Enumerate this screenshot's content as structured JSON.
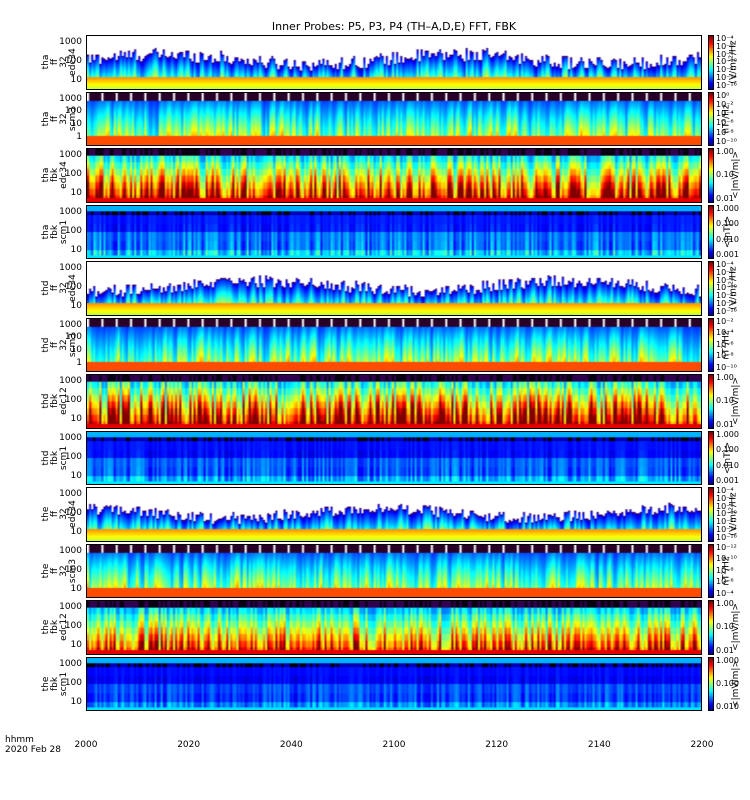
{
  "title": "Inner Probes: P5, P3, P4 (TH–A,D,E) FFT, FBK",
  "x_axis": {
    "label_line1": "hhmm",
    "label_line2": "2020 Feb 28",
    "ticks": [
      "2000",
      "2020",
      "2040",
      "2100",
      "2120",
      "2140",
      "2200"
    ]
  },
  "colors": {
    "palette": "rainbow-jet",
    "saturated_low": "#3a003a",
    "background": "#ffffff"
  },
  "chart_data": {
    "type": "heatmap",
    "title": "Inner Probes: P5, P3, P4 (TH–A,D,E) FFT, FBK",
    "x_start": "2000",
    "x_end": "2200",
    "x_ticks": [
      "2000",
      "2020",
      "2040",
      "2100",
      "2120",
      "2140",
      "2200"
    ],
    "panels": [
      {
        "probe": "tha",
        "label": [
          "tha",
          "ff",
          "32",
          "edc34"
        ],
        "yticks": [
          "1000",
          "100",
          "10"
        ],
        "y_scale": "log",
        "cbar_ticks": [
          "10⁻⁴",
          "10⁻⁶",
          "10⁻⁸",
          "10⁻¹⁰",
          "10⁻¹²",
          "10⁻¹⁴",
          "10⁻¹⁶"
        ],
        "cbar_unit": "(V/m)²/Hz",
        "kind": "ffe",
        "intensity": 0.42
      },
      {
        "probe": "tha",
        "label": [
          "tha",
          "ff",
          "32",
          "scm3"
        ],
        "yticks": [
          "1000",
          "100",
          "10",
          "1"
        ],
        "y_scale": "log",
        "cbar_ticks": [
          "10⁰",
          "10⁻²",
          "10⁻⁴",
          "10⁻⁶",
          "10⁻⁸",
          "10⁻¹⁰"
        ],
        "cbar_unit": "nT²/Hz",
        "kind": "ffs",
        "intensity": 0.4
      },
      {
        "probe": "tha",
        "label": [
          "tha",
          "fbk",
          "edc34"
        ],
        "yticks": [
          "1000",
          "100",
          "10"
        ],
        "y_scale": "log",
        "cbar_ticks": [
          "1.00",
          "0.10",
          "0.01"
        ],
        "cbar_unit": "<|mV/m|>",
        "kind": "fbe",
        "intensity": 0.55
      },
      {
        "probe": "tha",
        "label": [
          "tha",
          "fbk",
          "scm1"
        ],
        "yticks": [
          "1000",
          "100",
          "10"
        ],
        "y_scale": "log",
        "cbar_ticks": [
          "1.000",
          "0.100",
          "0.010",
          "0.001"
        ],
        "cbar_unit": "<|nT|>",
        "kind": "fbs",
        "intensity": 0.35
      },
      {
        "probe": "thd",
        "label": [
          "thd",
          "ff",
          "32",
          "edc34"
        ],
        "yticks": [
          "1000",
          "100",
          "10"
        ],
        "y_scale": "log",
        "cbar_ticks": [
          "10⁻⁴",
          "10⁻⁶",
          "10⁻⁸",
          "10⁻¹⁰",
          "10⁻¹²",
          "10⁻¹⁴",
          "10⁻¹⁶"
        ],
        "cbar_unit": "(V/m)²/Hz",
        "kind": "ffe",
        "intensity": 0.4
      },
      {
        "probe": "thd",
        "label": [
          "thd",
          "ff",
          "32",
          "scm3"
        ],
        "yticks": [
          "1000",
          "100",
          "10",
          "1"
        ],
        "y_scale": "log",
        "cbar_ticks": [
          "10⁻²",
          "10⁻⁴",
          "10⁻⁶",
          "10⁻⁸",
          "10⁻¹⁰"
        ],
        "cbar_unit": "nT²/Hz",
        "kind": "ffs",
        "intensity": 0.42
      },
      {
        "probe": "thd",
        "label": [
          "thd",
          "fbk",
          "edc12"
        ],
        "yticks": [
          "1000",
          "100",
          "10"
        ],
        "y_scale": "log",
        "cbar_ticks": [
          "1.00",
          "0.10",
          "0.01"
        ],
        "cbar_unit": "<|mV/m|>",
        "kind": "fbe",
        "intensity": 0.65
      },
      {
        "probe": "thd",
        "label": [
          "thd",
          "fbk",
          "scm1"
        ],
        "yticks": [
          "1000",
          "100",
          "10"
        ],
        "y_scale": "log",
        "cbar_ticks": [
          "1.000",
          "0.100",
          "0.010",
          "0.001"
        ],
        "cbar_unit": "<|nT|>",
        "kind": "fbs",
        "intensity": 0.3
      },
      {
        "probe": "the",
        "label": [
          "the",
          "ff",
          "32",
          "edc34"
        ],
        "yticks": [
          "1000",
          "100",
          "10"
        ],
        "y_scale": "log",
        "cbar_ticks": [
          "10⁻⁴",
          "10⁻⁶",
          "10⁻⁸",
          "10⁻¹⁰",
          "10⁻¹²",
          "10⁻¹⁴",
          "10⁻¹⁶"
        ],
        "cbar_unit": "(V/m)²/Hz",
        "kind": "ffe",
        "intensity": 0.36
      },
      {
        "probe": "the",
        "label": [
          "the",
          "ff",
          "32",
          "scm3"
        ],
        "yticks": [
          "1000",
          "100",
          "10"
        ],
        "y_scale": "log",
        "cbar_ticks": [
          "10⁻¹²",
          "10⁻¹⁰",
          "10⁻⁸",
          "10⁻⁶",
          "10⁻⁴"
        ],
        "cbar_unit": "nT²/Hz",
        "kind": "ffs",
        "intensity": 0.38
      },
      {
        "probe": "the",
        "label": [
          "the",
          "fbk",
          "edc12"
        ],
        "yticks": [
          "1000",
          "100",
          "10"
        ],
        "y_scale": "log",
        "cbar_ticks": [
          "1.00",
          "0.10",
          "0.01"
        ],
        "cbar_unit": "<|mV/m|>",
        "kind": "fbe",
        "intensity": 0.45
      },
      {
        "probe": "the",
        "label": [
          "the",
          "fbk",
          "scm1"
        ],
        "yticks": [
          "1000",
          "100",
          "10"
        ],
        "y_scale": "log",
        "cbar_ticks": [
          "1.000",
          "0.100",
          "0.010"
        ],
        "cbar_unit": "<|mV/m|>",
        "kind": "fbs",
        "intensity": 0.25
      }
    ]
  }
}
